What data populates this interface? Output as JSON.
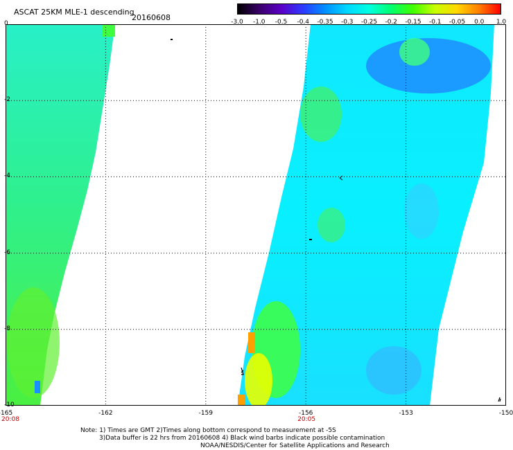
{
  "header": {
    "title": "ASCAT 25KM MLE-1 descending",
    "date": "20160608"
  },
  "colorbar": {
    "labels": [
      "-3.0",
      "-1.0",
      "-0.5",
      "-0.4",
      "-0.35",
      "-0.3",
      "-0.25",
      "-0.2",
      "-0.15",
      "-0.1",
      "-0.05",
      "0.0",
      "1.0"
    ],
    "colors": [
      "#000000",
      "#3a006a",
      "#5a00c8",
      "#2b3bff",
      "#0090ff",
      "#00d8ff",
      "#00ffe0",
      "#00ff70",
      "#40ff00",
      "#c8ff00",
      "#ffd800",
      "#ff8000",
      "#ff0000"
    ]
  },
  "map": {
    "x_ticks": [
      "-165",
      "-162",
      "-159",
      "-156",
      "-153",
      "-150"
    ],
    "y_ticks": [
      "0",
      "-2",
      "-4",
      "-6",
      "-8",
      "-10"
    ],
    "lon_range": [
      -165,
      -150
    ],
    "lat_range": [
      0,
      -10
    ],
    "times": [
      {
        "label": "20:08",
        "lon": -165
      },
      {
        "label": "20:05",
        "lon": -156
      }
    ]
  },
  "notes": [
    "Note: 1) Times are GMT 2)Times along bottom correspond to measurement at -5S",
    "3)Data buffer is 22 hrs from 20160608 4) Black wind barbs indicate possible contamination",
    "NOAA/NESDIS/Center for Satellite Applications and Research"
  ]
}
